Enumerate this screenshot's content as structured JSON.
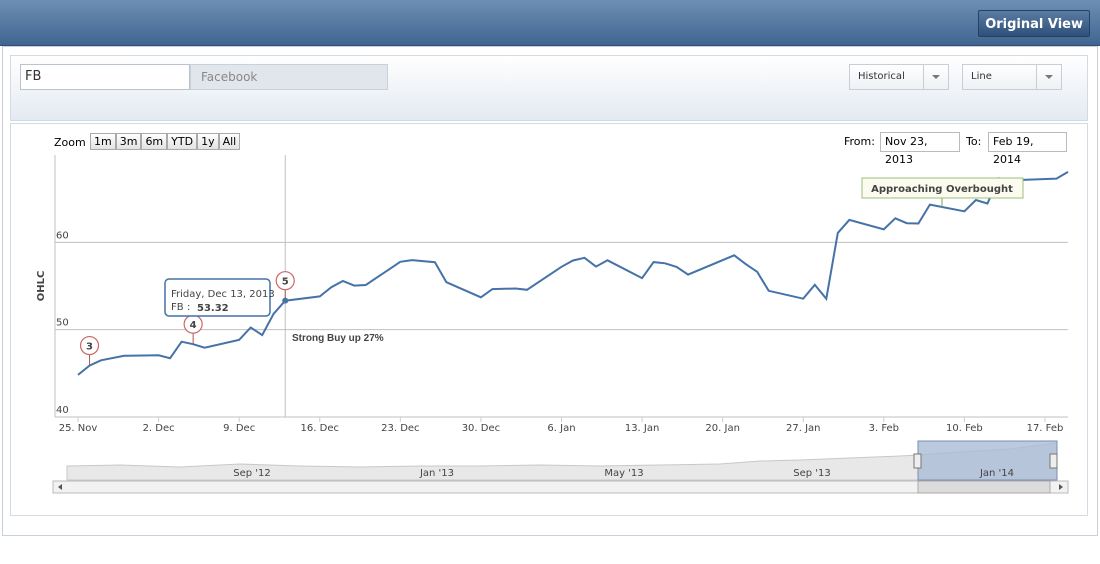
{
  "header": {
    "button": "Original View"
  },
  "toolbar": {
    "symbol": "FB",
    "company": "Facebook",
    "period": "Historical",
    "chart_style": "Line"
  },
  "zoom": {
    "label": "Zoom",
    "buttons": [
      "1m",
      "3m",
      "6m",
      "YTD",
      "1y",
      "All"
    ]
  },
  "range": {
    "from_label": "From:",
    "from": "Nov 23, 2013",
    "to_label": "To:",
    "to": "Feb 19, 2014"
  },
  "chart_data": {
    "type": "line",
    "y_label": "OHLC",
    "x": [
      "2013-11-25",
      "2013-11-26",
      "2013-11-27",
      "2013-11-29",
      "2013-12-02",
      "2013-12-03",
      "2013-12-04",
      "2013-12-05",
      "2013-12-06",
      "2013-12-09",
      "2013-12-10",
      "2013-12-11",
      "2013-12-12",
      "2013-12-13",
      "2013-12-16",
      "2013-12-17",
      "2013-12-18",
      "2013-12-19",
      "2013-12-20",
      "2013-12-23",
      "2013-12-24",
      "2013-12-26",
      "2013-12-27",
      "2013-12-30",
      "2013-12-31",
      "2014-01-02",
      "2014-01-03",
      "2014-01-06",
      "2014-01-07",
      "2014-01-08",
      "2014-01-09",
      "2014-01-10",
      "2014-01-13",
      "2014-01-14",
      "2014-01-15",
      "2014-01-16",
      "2014-01-17",
      "2014-01-21",
      "2014-01-22",
      "2014-01-23",
      "2014-01-24",
      "2014-01-27",
      "2014-01-28",
      "2014-01-29",
      "2014-01-30",
      "2014-01-31",
      "2014-02-03",
      "2014-02-04",
      "2014-02-05",
      "2014-02-06",
      "2014-02-07",
      "2014-02-10",
      "2014-02-11",
      "2014-02-12",
      "2014-02-13",
      "2014-02-14",
      "2014-02-18",
      "2014-02-19"
    ],
    "series": [
      {
        "name": "FB",
        "color": "#4572a7",
        "values": [
          44.82,
          45.89,
          46.49,
          47.01,
          47.06,
          46.73,
          48.62,
          48.34,
          47.94,
          48.84,
          50.25,
          49.38,
          51.83,
          53.32,
          53.81,
          54.86,
          55.57,
          55.05,
          55.12,
          57.77,
          57.96,
          57.73,
          55.44,
          53.71,
          54.65,
          54.71,
          54.56,
          57.2,
          57.92,
          58.23,
          57.22,
          57.94,
          55.91,
          57.74,
          57.6,
          57.19,
          56.3,
          58.51,
          57.51,
          56.63,
          54.45,
          53.55,
          55.14,
          53.53,
          61.08,
          62.57,
          61.48,
          62.75,
          62.19,
          62.16,
          64.32,
          63.55,
          64.85,
          64.45,
          67.33,
          67.09,
          67.3,
          68.06
        ]
      }
    ],
    "xlim": [
      "2013-11-23",
      "2014-02-19"
    ],
    "xticks": [
      {
        "value": "2013-11-25",
        "label": "25. Nov"
      },
      {
        "value": "2013-12-02",
        "label": "2. Dec"
      },
      {
        "value": "2013-12-09",
        "label": "9. Dec"
      },
      {
        "value": "2013-12-16",
        "label": "16. Dec"
      },
      {
        "value": "2013-12-23",
        "label": "23. Dec"
      },
      {
        "value": "2013-12-30",
        "label": "30. Dec"
      },
      {
        "value": "2014-01-06",
        "label": "6. Jan"
      },
      {
        "value": "2014-01-13",
        "label": "13. Jan"
      },
      {
        "value": "2014-01-20",
        "label": "20. Jan"
      },
      {
        "value": "2014-01-27",
        "label": "27. Jan"
      },
      {
        "value": "2014-02-03",
        "label": "3. Feb"
      },
      {
        "value": "2014-02-10",
        "label": "10. Feb"
      },
      {
        "value": "2014-02-17",
        "label": "17. Feb"
      }
    ],
    "ylim": [
      40,
      70
    ],
    "yticks": [
      40,
      50,
      60
    ],
    "grid": true,
    "flags": [
      {
        "x": "2013-11-26",
        "title": "3"
      },
      {
        "x": "2013-12-05",
        "title": "4"
      },
      {
        "x": "2013-12-13",
        "title": "5"
      }
    ],
    "tooltip": {
      "x": "2013-12-13",
      "header": "Friday, Dec 13, 2013"
    },
    "annotations": [
      "Strong Buy up 27%",
      "Approaching Overbought"
    ],
    "navigator_labels": [
      "Sep '12",
      "Jan '13",
      "May '13",
      "Sep '13",
      "Jan '14"
    ]
  }
}
